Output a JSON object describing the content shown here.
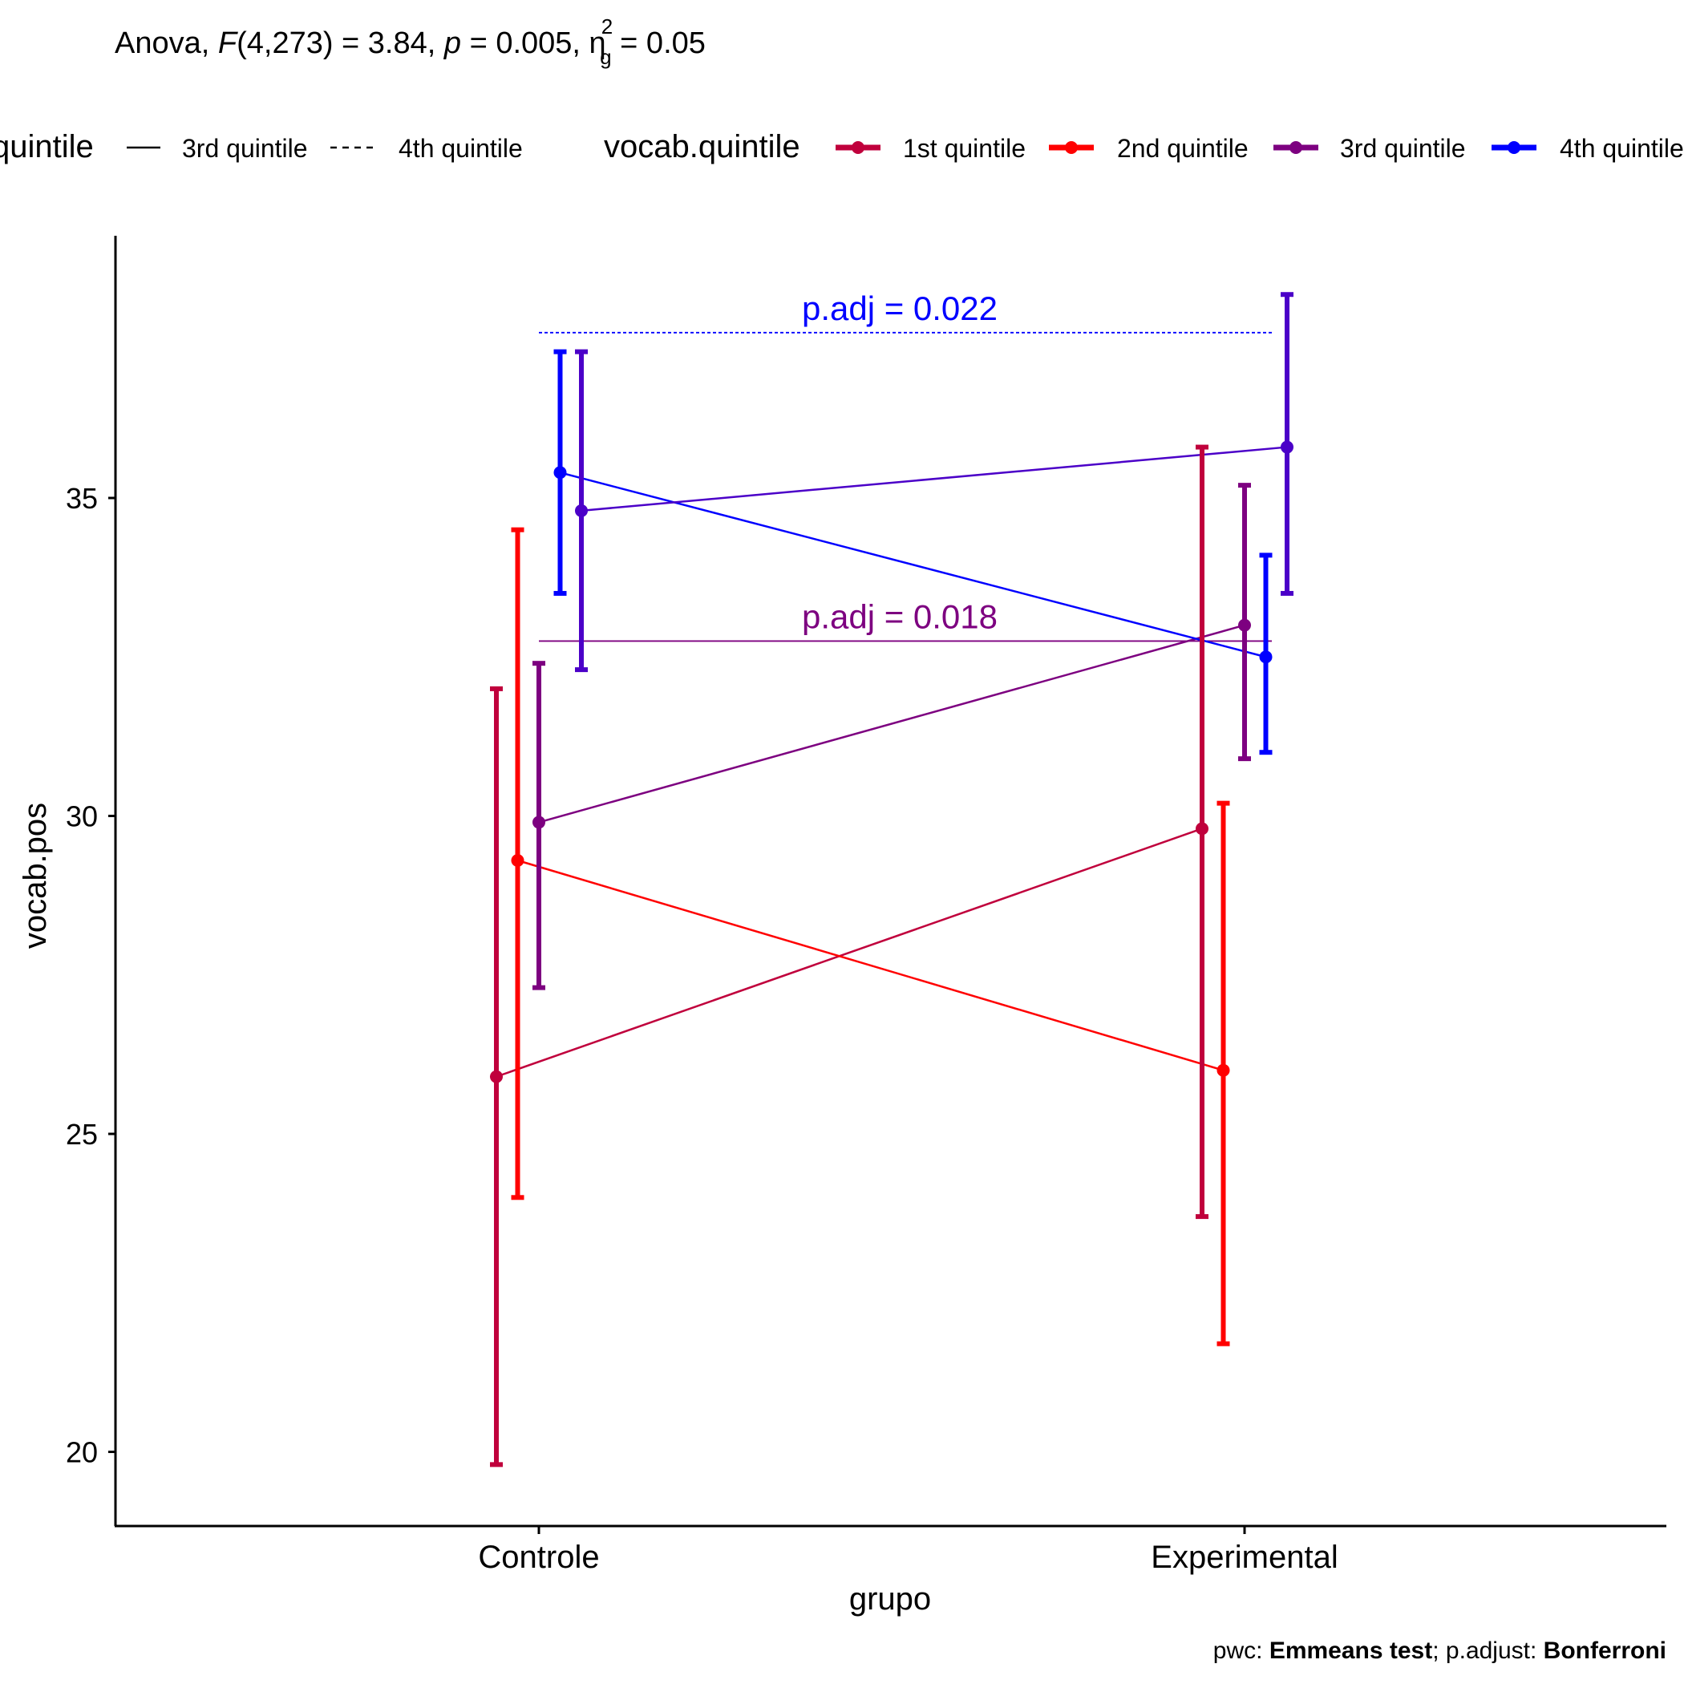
{
  "subtitle": {
    "prefix": "Anova, ",
    "f": "F",
    "df": "(4,273) = 3.84, ",
    "p": "p",
    "p_value": " = 0.005, ",
    "eta": "η",
    "eta_sup": "2",
    "eta_sub": "g",
    "eta_value": " = 0.05"
  },
  "caption": {
    "pwc_label": "pwc: ",
    "pwc_value": "Emmeans test",
    "sep": "; p.adjust: ",
    "adjust_value": "Bonferroni"
  },
  "legend_linetype": {
    "title": "quintile",
    "items": [
      {
        "label": "3rd quintile",
        "style": "solid"
      },
      {
        "label": "4th quintile",
        "style": "dashed"
      }
    ]
  },
  "legend_color": {
    "title": "vocab.quintile",
    "items": [
      {
        "label": "1st quintile",
        "color": "#C0003C"
      },
      {
        "label": "2nd quintile",
        "color": "#FF0000"
      },
      {
        "label": "3rd quintile",
        "color": "#7D0080"
      },
      {
        "label": "4th quintile",
        "color": "#0000FF"
      }
    ]
  },
  "chart_data": {
    "type": "line",
    "xlabel": "grupo",
    "ylabel": "vocab.pos",
    "categories": [
      "Controle",
      "Experimental"
    ],
    "y_ticks": [
      20,
      25,
      30,
      35
    ],
    "ylim": [
      18.9,
      39.2
    ],
    "error_bars": true,
    "grid": false,
    "series": [
      {
        "name": "1st quintile",
        "color": "#C0003C",
        "mean": [
          25.9,
          29.8
        ],
        "lower": [
          19.8,
          23.7
        ],
        "upper": [
          32.0,
          35.8
        ]
      },
      {
        "name": "2nd quintile",
        "color": "#FF0000",
        "mean": [
          29.3,
          26.0
        ],
        "lower": [
          24.0,
          21.7
        ],
        "upper": [
          34.5,
          30.2
        ]
      },
      {
        "name": "3rd quintile",
        "color": "#7D0080",
        "mean": [
          29.9,
          33.0
        ],
        "lower": [
          27.3,
          30.9
        ],
        "upper": [
          32.4,
          35.2
        ]
      },
      {
        "name": "4th quintile",
        "color": "#0000FF",
        "mean": [
          35.4,
          32.5
        ],
        "lower": [
          33.5,
          31.0
        ],
        "upper": [
          37.3,
          34.1
        ]
      },
      {
        "color": "#4B00C8",
        "mean": [
          34.8,
          35.8
        ],
        "lower": [
          32.3,
          33.5
        ],
        "upper": [
          37.3,
          38.2
        ]
      }
    ],
    "annotations": [
      {
        "text": "p.adj = 0.022",
        "y": 37.6,
        "color": "#0000FF",
        "linetype": "dashed"
      },
      {
        "text": "p.adj = 0.018",
        "y": 32.75,
        "color": "#7D0080",
        "linetype": "solid"
      }
    ]
  }
}
